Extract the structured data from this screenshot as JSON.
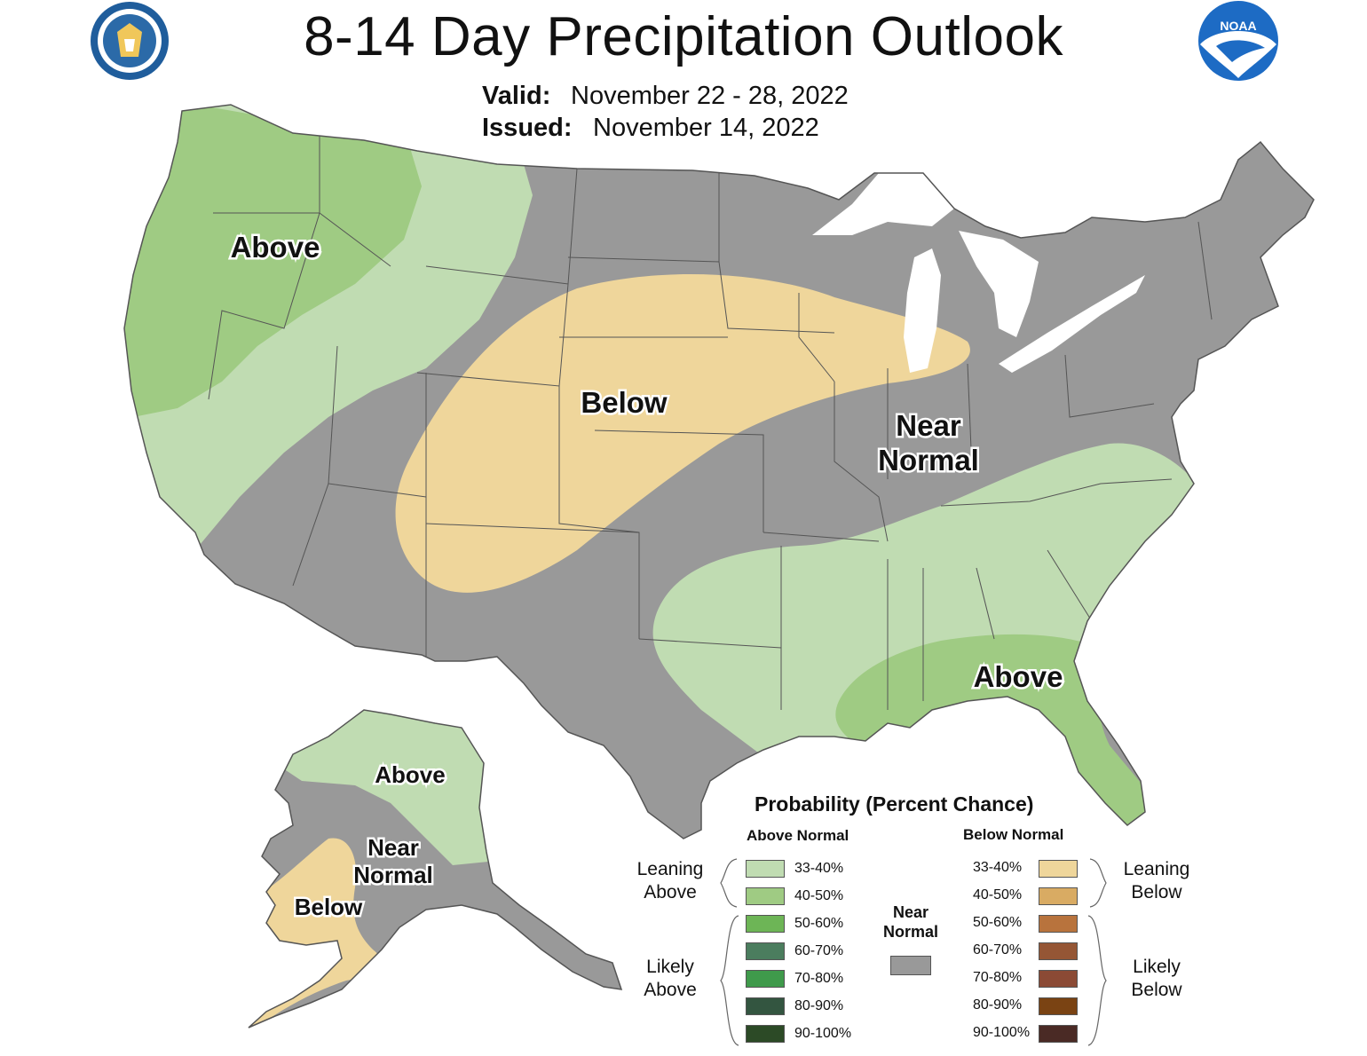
{
  "title": "8-14 Day Precipitation Outlook",
  "valid": {
    "label": "Valid:",
    "value": "November 22 - 28, 2022"
  },
  "issued": {
    "label": "Issued:",
    "value": "November 14, 2022"
  },
  "logos": {
    "left": "department-of-commerce-seal",
    "right": "noaa-logo",
    "noaa_text": "NOAA"
  },
  "map_labels": {
    "west_above": "Above",
    "central_below": "Below",
    "east_near_line1": "Near",
    "east_near_line2": "Normal",
    "southeast_above": "Above",
    "ak_above": "Above",
    "ak_near_line1": "Near",
    "ak_near_line2": "Normal",
    "ak_below": "Below"
  },
  "legend": {
    "title": "Probability (Percent Chance)",
    "above_header": "Above Normal",
    "below_header": "Below Normal",
    "near_normal_line1": "Near",
    "near_normal_line2": "Normal",
    "leaning_above_line1": "Leaning",
    "leaning_above_line2": "Above",
    "likely_above_line1": "Likely",
    "likely_above_line2": "Above",
    "leaning_below_line1": "Leaning",
    "leaning_below_line2": "Below",
    "likely_below_line1": "Likely",
    "likely_below_line2": "Below",
    "above": [
      {
        "range": "33-40%",
        "color": "#c0dcb2"
      },
      {
        "range": "40-50%",
        "color": "#9fcb83"
      },
      {
        "range": "50-60%",
        "color": "#6db556"
      },
      {
        "range": "60-70%",
        "color": "#4b7d5e"
      },
      {
        "range": "70-80%",
        "color": "#3f9a4b"
      },
      {
        "range": "80-90%",
        "color": "#335540"
      },
      {
        "range": "90-100%",
        "color": "#2c4a26"
      }
    ],
    "below": [
      {
        "range": "33-40%",
        "color": "#efd69b"
      },
      {
        "range": "40-50%",
        "color": "#d9ab63"
      },
      {
        "range": "50-60%",
        "color": "#b8733d"
      },
      {
        "range": "60-70%",
        "color": "#955635"
      },
      {
        "range": "70-80%",
        "color": "#8b4a35"
      },
      {
        "range": "80-90%",
        "color": "#7a4313"
      },
      {
        "range": "90-100%",
        "color": "#4a2a25"
      }
    ],
    "near_normal_color": "#999999"
  },
  "colors": {
    "near_normal": "#999999",
    "leaning_above": "#c0dcb2",
    "above_40_50": "#9fcb83",
    "leaning_below": "#efd69b",
    "lakes": "#ffffff",
    "borders": "#555555"
  }
}
